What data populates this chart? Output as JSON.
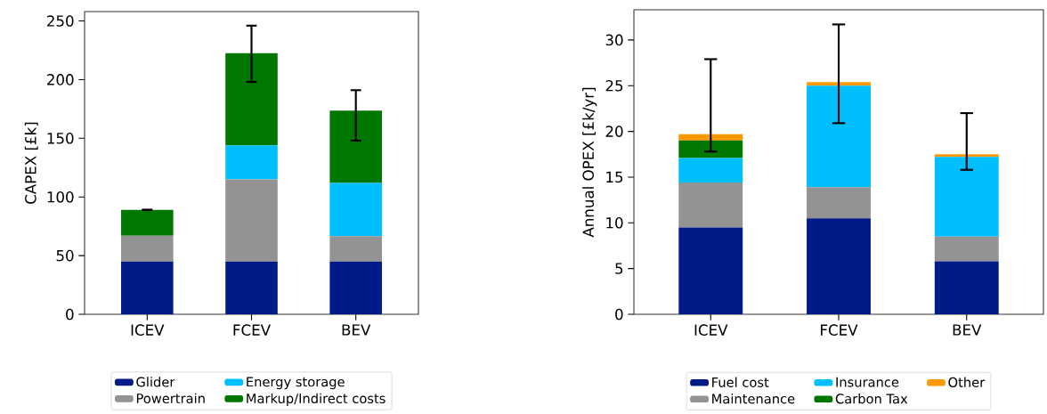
{
  "chart_data": [
    {
      "type": "bar",
      "stacked": true,
      "categories": [
        "ICEV",
        "FCEV",
        "BEV"
      ],
      "ylabel": "CAPEX [£k]",
      "ylim": [
        0,
        258
      ],
      "yticks": [
        0,
        50,
        100,
        150,
        200,
        250
      ],
      "legend": "bottom",
      "series": [
        {
          "name": "Glider",
          "color": "#001a87",
          "values": [
            45,
            45,
            45
          ]
        },
        {
          "name": "Powertrain",
          "color": "#939393",
          "values": [
            22,
            70,
            21.5
          ]
        },
        {
          "name": "Energy storage",
          "color": "#00bfff",
          "values": [
            0,
            29,
            45.5
          ]
        },
        {
          "name": "Markup/Indirect costs",
          "color": "#007700",
          "values": [
            22,
            78.5,
            61.5
          ],
          "errors": [
            [
              89,
              89
            ],
            [
              198,
              246
            ],
            [
              148,
              191
            ]
          ]
        }
      ]
    },
    {
      "type": "bar",
      "stacked": true,
      "categories": [
        "ICEV",
        "FCEV",
        "BEV"
      ],
      "ylabel": "Annual OPEX [£k/yr]",
      "ylim": [
        0,
        33.3
      ],
      "yticks": [
        0,
        5,
        10,
        15,
        20,
        25,
        30
      ],
      "legend": "bottom",
      "series": [
        {
          "name": "Fuel cost",
          "color": "#001a87",
          "values": [
            9.5,
            10.5,
            5.8
          ]
        },
        {
          "name": "Maintenance",
          "color": "#939393",
          "values": [
            4.9,
            3.4,
            2.7
          ]
        },
        {
          "name": "Insurance",
          "color": "#00bfff",
          "values": [
            2.7,
            11.1,
            8.7
          ]
        },
        {
          "name": "Carbon Tax",
          "color": "#007700",
          "values": [
            1.9,
            0,
            0
          ]
        },
        {
          "name": "Other",
          "color": "#ff9900",
          "values": [
            0.7,
            0.4,
            0.3
          ],
          "errors": [
            [
              17.8,
              27.9
            ],
            [
              20.9,
              31.7
            ],
            [
              15.8,
              22.0
            ]
          ]
        }
      ]
    }
  ]
}
